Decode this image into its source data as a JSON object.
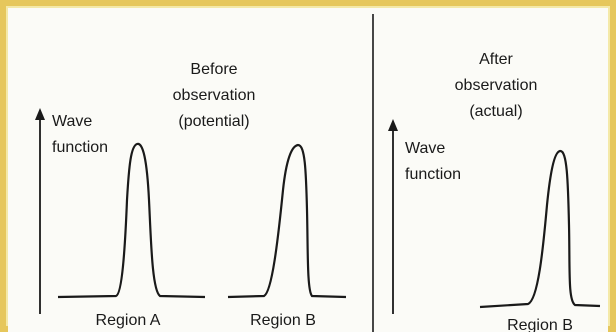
{
  "left_panel": {
    "title_lines": [
      "Before",
      "observation",
      "(potential)"
    ],
    "axis_label_lines": [
      "Wave",
      "function"
    ],
    "regions": [
      "Region A",
      "Region B"
    ]
  },
  "right_panel": {
    "title_lines": [
      "After",
      "observation",
      "(actual)"
    ],
    "axis_label_lines": [
      "Wave",
      "function"
    ],
    "regions": [
      "Region B"
    ]
  },
  "colors": {
    "frame": "#e6c75c",
    "background": "#f4e9a8",
    "panel": "#fbfbf7",
    "ink": "#1a1a1a"
  }
}
